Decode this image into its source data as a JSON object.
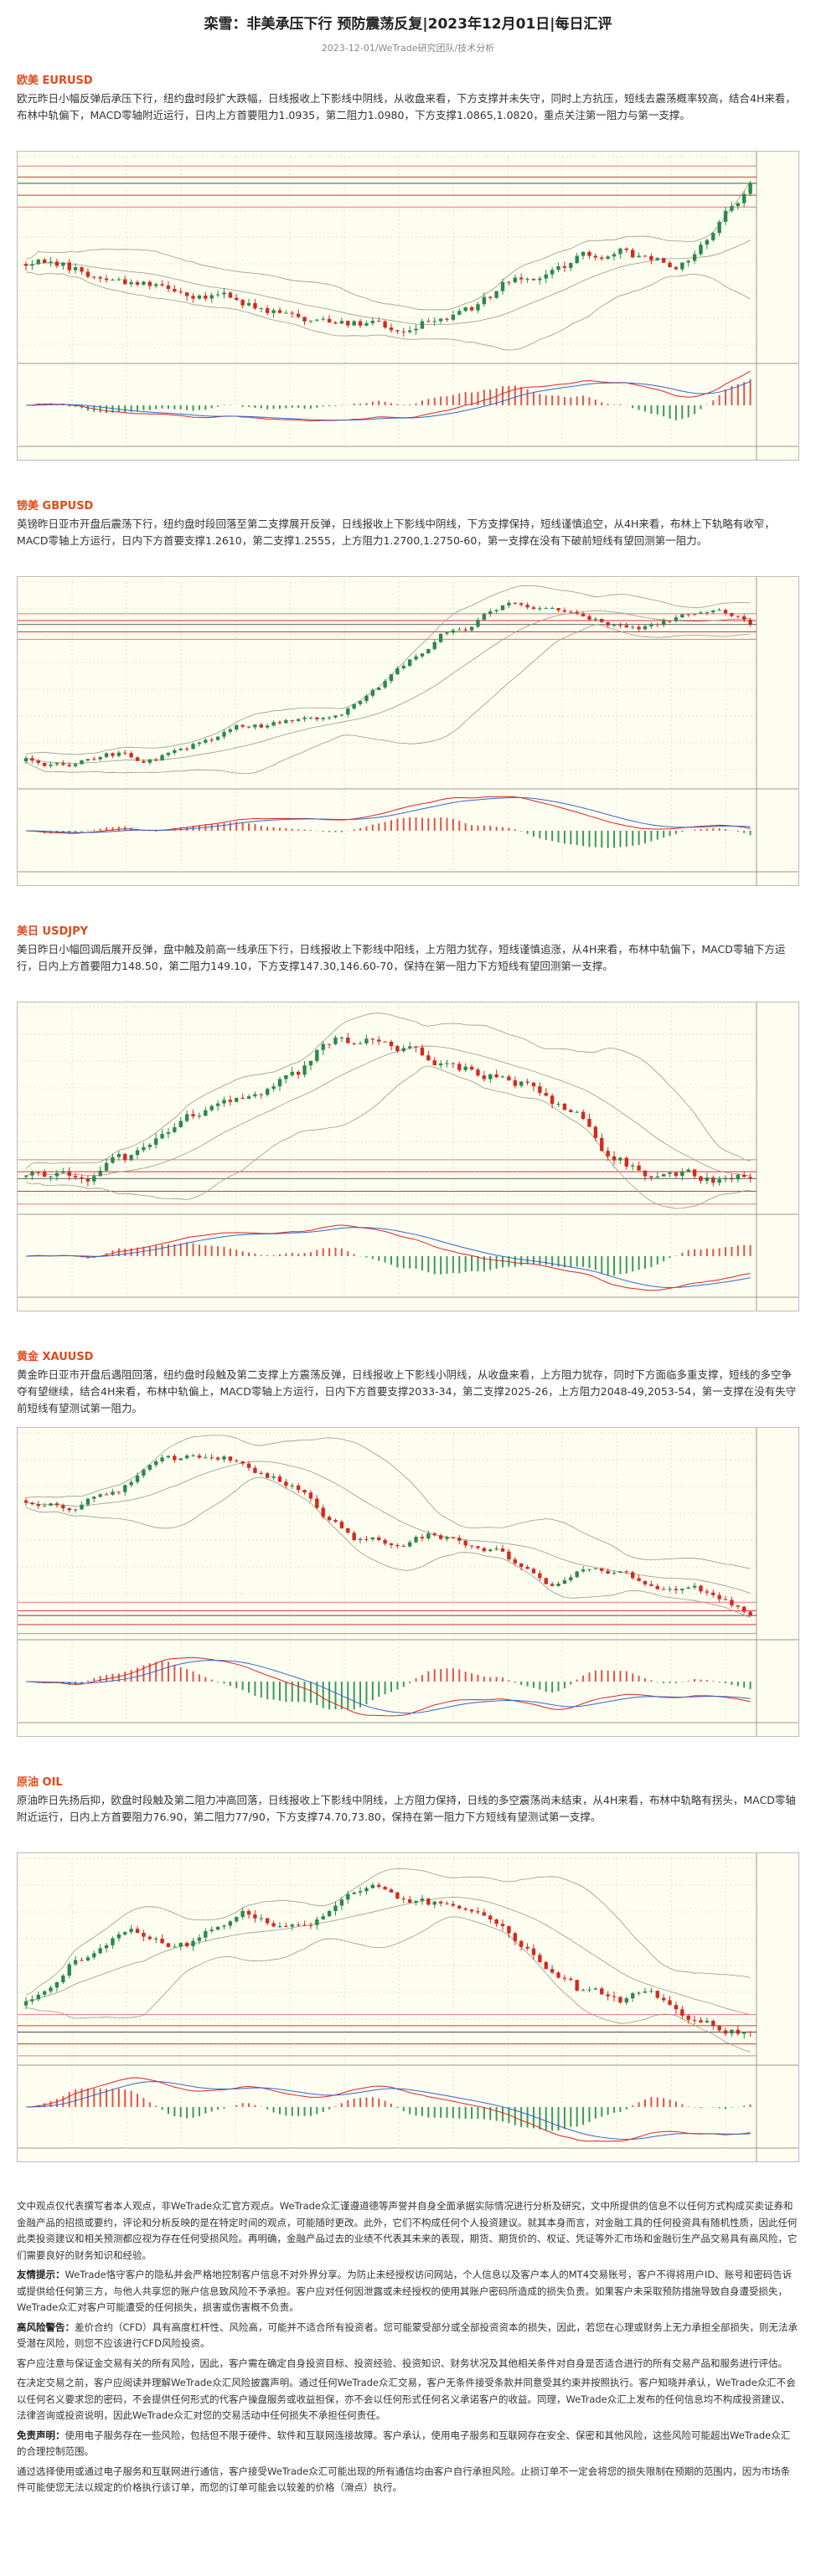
{
  "header": {
    "title": "栾雪：非美承压下行 预防震荡反复|2023年12月01日|每日汇评",
    "subtitle": "2023-12-01/WeTrade研究团队/技术分析"
  },
  "sections": [
    {
      "heading": "欧美 EURUSD",
      "text": "欧元昨日小幅反弹后承压下行，纽约盘时段扩大跌幅，日线报收上下影线中阴线，从收盘来看，下方支撑并未失守，同时上方抗压，短线去震荡概率较高，结合4H来看，布林中轨偏下，MACD零轴附近运行，日内上方首要阻力1.0935，第二阻力1.0980，下方支撑1.0865,1.0820，重点关注第一阻力与第一支撑。"
    },
    {
      "heading": "镑美 GBPUSD",
      "text": "英镑昨日亚市开盘后震荡下行，纽约盘时段回落至第二支撑展开反弹，日线报收上下影线中阴线，下方支撑保持，短线谨慎追空，从4H来看，布林上下轨略有收窄，MACD零轴上方运行，日内下方首要支撑1.2610，第二支撑1.2555，上方阻力1.2700,1.2750-60，第一支撑在没有下破前短线有望回测第一阻力。"
    },
    {
      "heading": "美日 USDJPY",
      "text": "美日昨日小幅回调后展开反弹，盘中触及前高一线承压下行，日线报收上下影线中阳线，上方阻力犹存，短线谨慎追涨，从4H来看，布林中轨偏下，MACD零轴下方运行，日内上方首要阻力148.50，第二阻力149.10，下方支撑147.30,146.60-70，保持在第一阻力下方短线有望回测第一支撑。"
    },
    {
      "heading": "黄金 XAUUSD",
      "text": "黄金昨日亚市开盘后遇阻回落，纽约盘时段触及第二支撑上方震荡反弹，日线报收上下影线小阴线，从收盘来看，上方阻力犹存，同时下方面临多重支撑，短线的多空争夺有望继续，结合4H来看，布林中轨偏上，MACD零轴上方运行，日内下方首要支撑2033-34，第二支撑2025-26，上方阻力2048-49,2053-54，第一支撑在没有失守前短线有望测试第一阻力。"
    },
    {
      "heading": "原油 OIL",
      "text": "原油昨日先扬后抑，欧盘时段触及第二阻力冲高回落，日线报收上下影线中阴线，上方阻力保持，日线的多空震荡尚未结束，从4H来看，布林中轨略有拐头，MACD零轴附近运行，日内上方首要阻力76.90，第二阻力77/90，下方支撑74.70,73.80，保持在第一阻力下方短线有望测试第一支撑。"
    }
  ],
  "disclaimer": [
    {
      "text": "文中观点仅代表撰写者本人观点，非WeTrade众汇官方观点。WeTrade众汇谨遵道德等声誉并自身全面承据实际情况进行分析及研究，文中所提供的信息不以任何方式构成买卖证券和金融产品的招揽或要约，评论和分析反映的是在特定时间的观点，可能随时更改。此外，它们不构成任何个人投资建议。就其本身而言，对金融工具的任何投资具有随机性质，因此任何此类投资建议和相关预测都应视为存在任何受损风险。再明确，金融产品过去的业绩不代表其未来的表现，期货、期货价的、权证、凭证等外汇市场和金融衍生产品交易具有高风险，它们需要良好的财务知识和经验。"
    },
    {
      "label": "友情提示：",
      "text": "WeTrade恪守客户的隐私并会严格地控制客户信息不对外界分享。为防止未经授权访问网站，个人信息以及客户本人的MT4交易账号，客户不得将用户ID、账号和密码告诉或提供给任何第三方，与他人共享您的账户信息致风险不予承担。客户应对任何因泄露或未经授权的使用其账户密码所造成的损失负责。如果客户未采取预防措施导致自身遭受损失，WeTrade众汇对客户可能遭受的任何损失，损害或伤害概不负责。"
    },
    {
      "label": "高风险警告：",
      "text": "差价合约（CFD）具有高度杠杆性、风险高，可能并不适合所有投资者。您可能蒙受部分或全部投资资本的损失，因此，若您在心理或财务上无力承担全部损失，则无法承受潜在风险，则您不应该进行CFD风险投资。"
    },
    {
      "text": "客户应注意与保证金交易有关的所有风险，因此，客户需在确定自身投资目标、投资经验、投资知识、财务状况及其他相关条件对自身是否适合进行的所有交易产品和服务进行评估。"
    },
    {
      "text": "在决定交易之前，客户应阅读并理解WeTrade众汇风险披露声明。通过任何WeTrade众汇交易，客户无条件接受条款并同意受其约束并按照执行。客户知晓并承认，WeTrade众汇不会以任何名义要求您的密码，不会提供任何形式的代客户操盘服务或收益担保，亦不会以任何形式任何名义承诺客户的收益。同理，WeTrade众汇上发布的任何信息均不构成投资建议、法律咨询或投资说明，因此WeTrade众汇对您的交易活动中任何损失不承担任何责任。"
    },
    {
      "label": "免责声明：",
      "text": "使用电子服务存在一些风险，包括但不限于硬件、软件和互联网连接故障。客户承认，使用电子服务和互联网存在安全、保密和其他风险，这些风险可能超出WeTrade众汇的合理控制范围。"
    },
    {
      "text": "通过选择使用或通过电子服务和互联网进行通信，客户接受WeTrade众汇可能出现的所有通信均由客户自行承担风险。止损订单不一定会将您的损失限制在预期的范围内，因为市场条件可能使您无法以规定的价格执行该订单，而您的订单可能会以较差的价格（滑点）执行。"
    }
  ]
}
